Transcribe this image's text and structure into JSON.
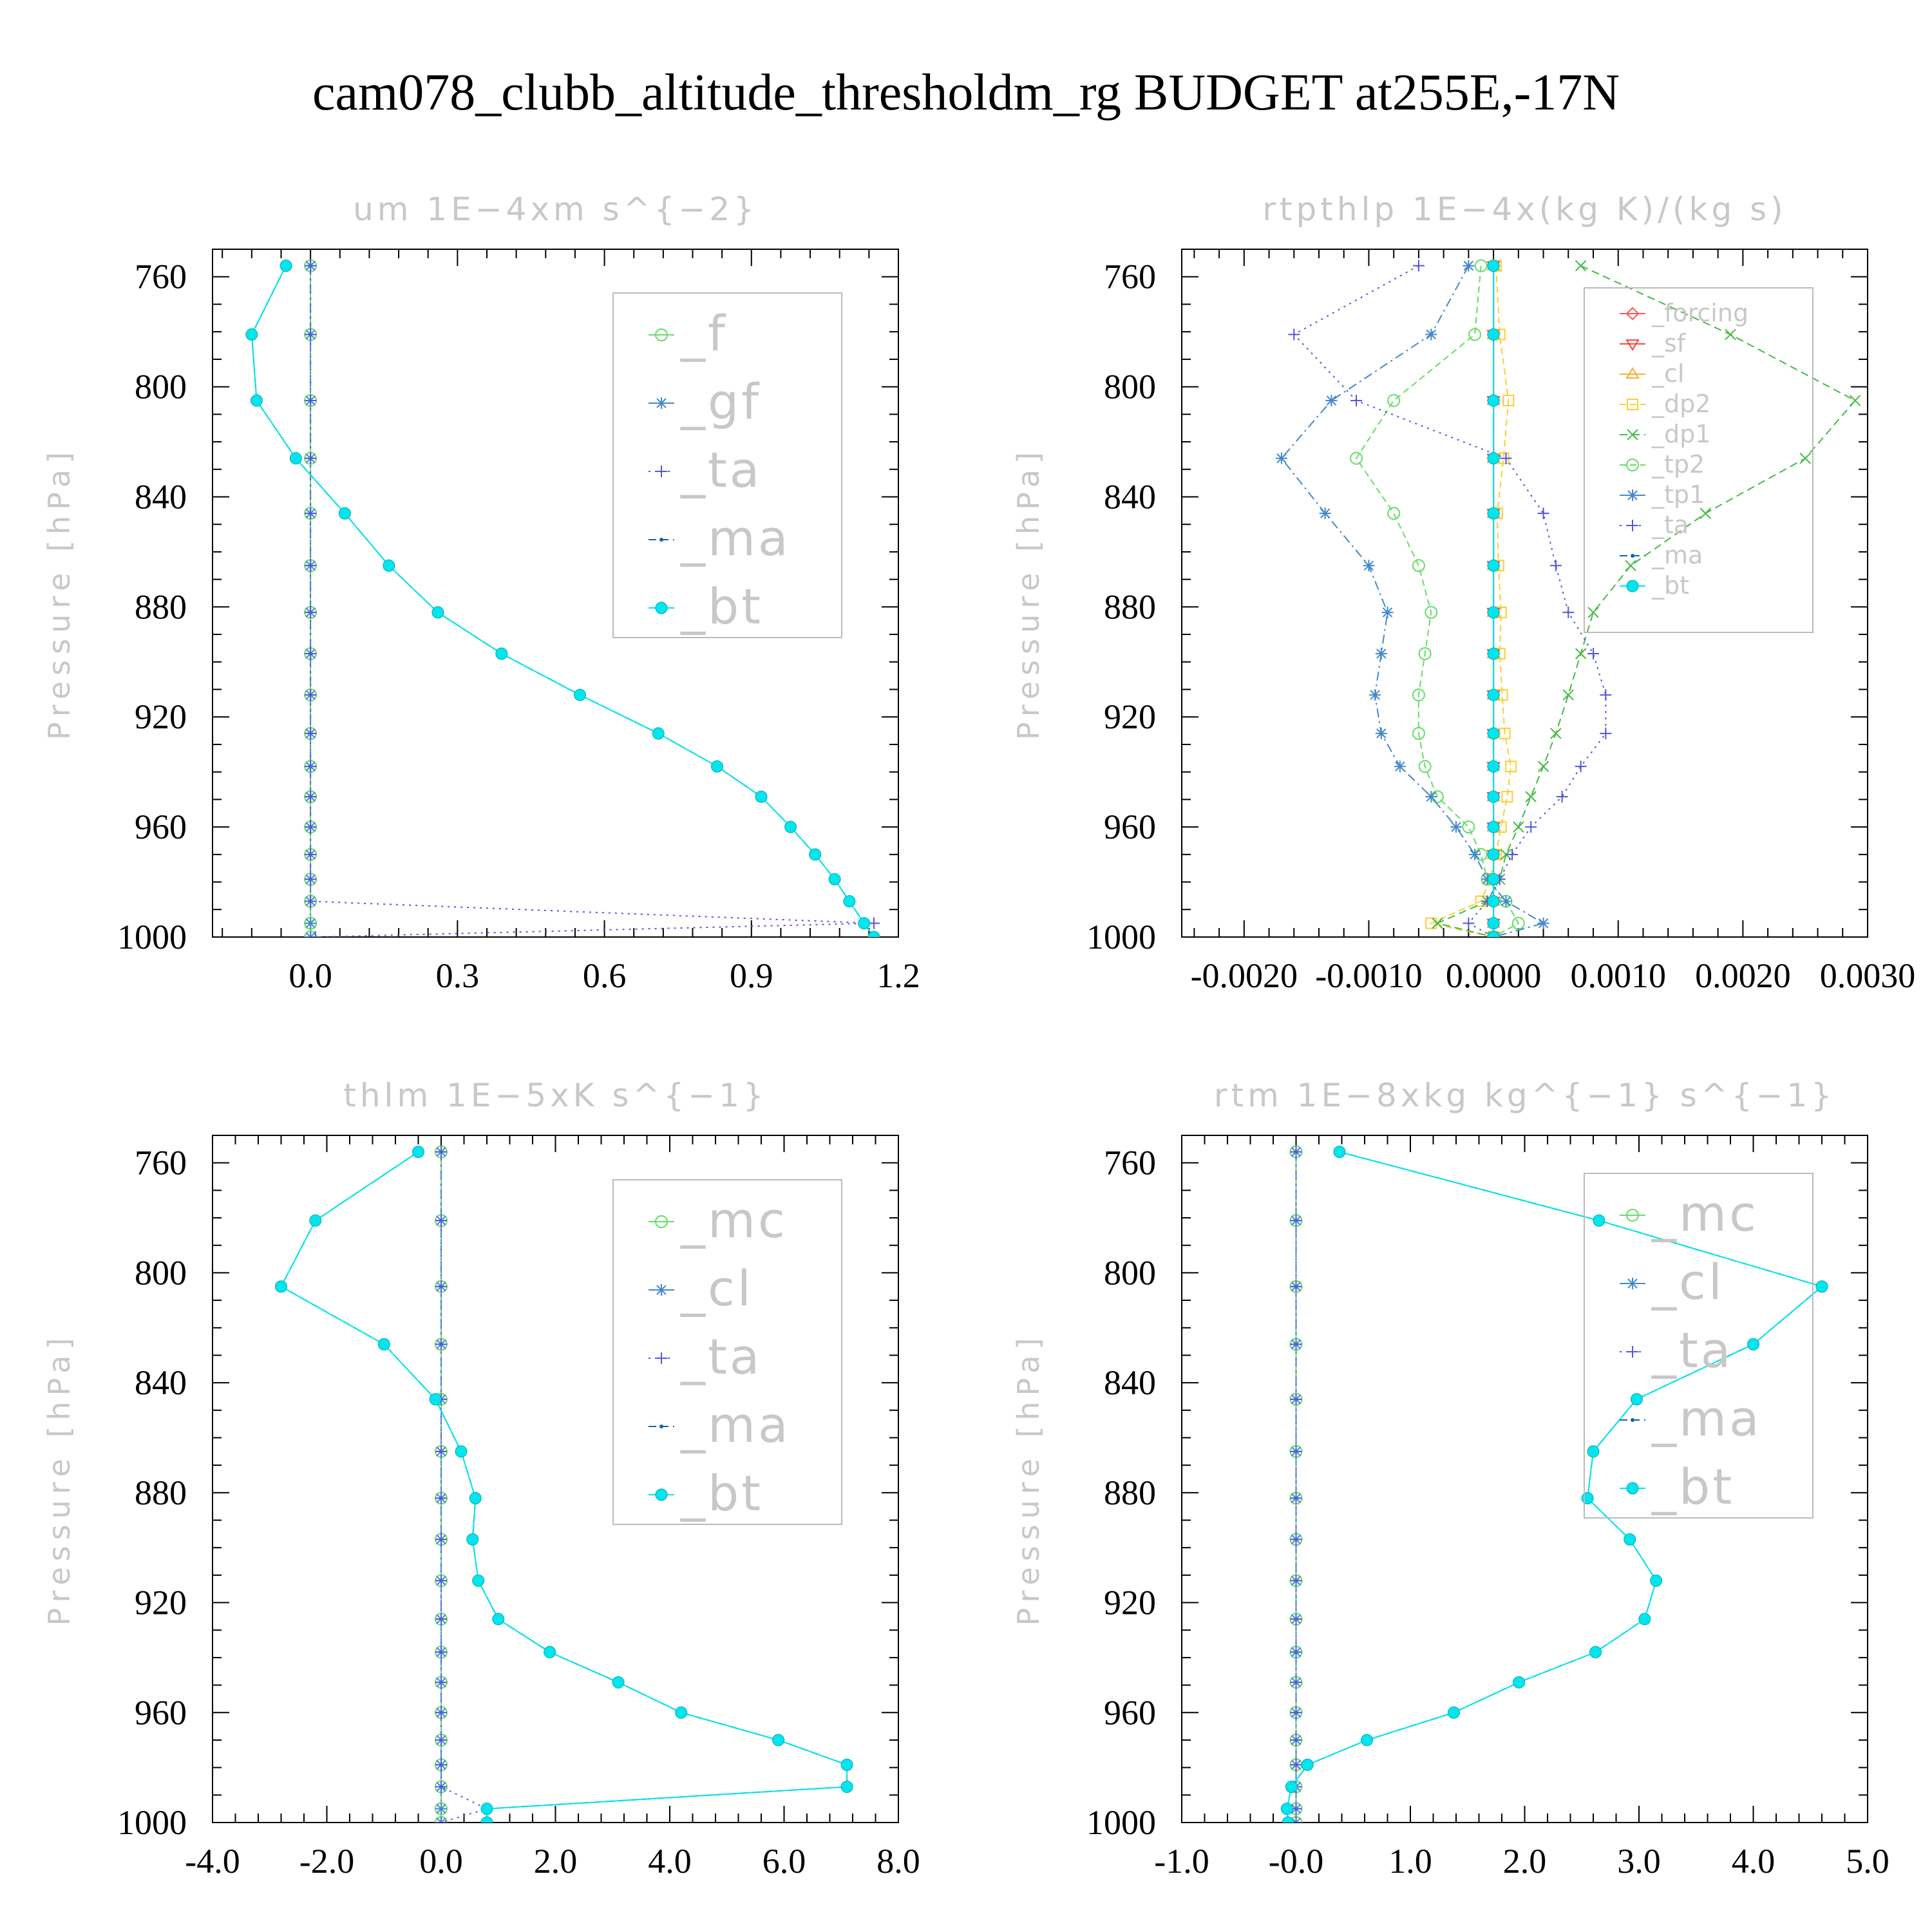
{
  "title": "cam078_clubb_altitude_thresholdm_rg  BUDGET at255E,-17N",
  "chart_data": [
    {
      "type": "line",
      "title": "um   1E−4xm s^{−2}",
      "ylabel": "Pressure [hPa]",
      "xlabel": "",
      "xlim": [
        -0.2,
        1.2
      ],
      "ylim": [
        1000,
        750
      ],
      "xticks": [
        "0.0",
        "0.3",
        "0.6",
        "0.9",
        "1.2"
      ],
      "xtick_values": [
        0.0,
        0.3,
        0.6,
        0.9,
        1.2
      ],
      "yticks": [
        "760",
        "800",
        "840",
        "880",
        "920",
        "960",
        "1000"
      ],
      "legend_position": "top-right",
      "pressure": [
        756,
        781,
        805,
        826,
        846,
        865,
        882,
        897,
        912,
        926,
        938,
        949,
        960,
        970,
        979,
        987,
        995,
        1000
      ],
      "series": [
        {
          "name": "_f",
          "color": "#66dd66",
          "marker": "circle",
          "dash": "",
          "values": [
            0,
            0,
            0,
            0,
            0,
            0,
            0,
            0,
            0,
            0,
            0,
            0,
            0,
            0,
            0,
            0,
            0,
            0
          ]
        },
        {
          "name": "_gf",
          "color": "#4488cc",
          "marker": "star",
          "dash": "14,6,3,6",
          "values": [
            0,
            0,
            0,
            0,
            0,
            0,
            0,
            0,
            0,
            0,
            0,
            0,
            0,
            0,
            0,
            0,
            0,
            0
          ]
        },
        {
          "name": "_ta",
          "color": "#5555dd",
          "marker": "plus",
          "dash": "3,7",
          "values": [
            0,
            0,
            0,
            0,
            0,
            0,
            0,
            0,
            0,
            0,
            0,
            0,
            0,
            0,
            0,
            0,
            1.15,
            0.01
          ]
        },
        {
          "name": "_ma",
          "color": "#1166aa",
          "marker": "dot",
          "dash": "12,7",
          "values": [
            -0.05,
            -0.12,
            -0.11,
            -0.03,
            0.07,
            0.16,
            0.26,
            0.39,
            0.55,
            0.71,
            0.83,
            0.92,
            0.98,
            1.03,
            1.07,
            1.1,
            1.13,
            1.15
          ]
        },
        {
          "name": "_bt",
          "color": "#00e5ee",
          "marker": "bigdot",
          "dash": "",
          "values": [
            -0.05,
            -0.12,
            -0.11,
            -0.03,
            0.07,
            0.16,
            0.26,
            0.39,
            0.55,
            0.71,
            0.83,
            0.92,
            0.98,
            1.03,
            1.07,
            1.1,
            1.13,
            1.15
          ]
        }
      ]
    },
    {
      "type": "line",
      "title": "rtpthlp   1E−4x(kg K)/(kg s)",
      "ylabel": "Pressure [hPa]",
      "xlabel": "",
      "xlim": [
        -0.0025,
        0.003
      ],
      "ylim": [
        1000,
        750
      ],
      "xticks": [
        "-0.0020",
        "-0.0010",
        "0.0000",
        "0.0010",
        "0.0020",
        "0.0030"
      ],
      "xtick_values": [
        -0.002,
        -0.001,
        0.0,
        0.001,
        0.002,
        0.003
      ],
      "yticks": [
        "760",
        "800",
        "840",
        "880",
        "920",
        "960",
        "1000"
      ],
      "legend_position": "top-right",
      "pressure": [
        756,
        781,
        805,
        826,
        846,
        865,
        882,
        897,
        912,
        926,
        938,
        949,
        960,
        970,
        979,
        987,
        995,
        1000
      ],
      "series": [
        {
          "name": "_forcing",
          "color": "#ff5555",
          "marker": "diamond",
          "dash": "",
          "values": [
            0,
            0,
            0,
            0,
            0,
            0,
            0,
            0,
            0,
            0,
            0,
            0,
            0,
            0,
            0,
            0,
            0,
            0
          ]
        },
        {
          "name": "_sf",
          "color": "#ff4444",
          "marker": "tri-down",
          "dash": "",
          "values": [
            0,
            0,
            0,
            0,
            0,
            0,
            0,
            0,
            0,
            0,
            0,
            0,
            0,
            0,
            0,
            0,
            0,
            0
          ]
        },
        {
          "name": "_cl",
          "color": "#ffaa33",
          "marker": "tri-up",
          "dash": "",
          "values": [
            0,
            0,
            0,
            0,
            0,
            0,
            0,
            0,
            0,
            0,
            0,
            0,
            0,
            0,
            0,
            0,
            0,
            0
          ]
        },
        {
          "name": "_dp2",
          "color": "#ffcc33",
          "marker": "square",
          "dash": "10,6",
          "values": [
            2e-05,
            5e-05,
            0.00012,
            8e-05,
            3e-05,
            4e-05,
            6e-05,
            5e-05,
            7e-05,
            9e-05,
            0.00014,
            0.00011,
            6e-05,
            2e-05,
            -3e-05,
            -0.0001,
            -0.0005,
            0.0
          ]
        },
        {
          "name": "_dp1",
          "color": "#44bb44",
          "marker": "x",
          "dash": "12,7",
          "values": [
            0.0007,
            0.0019,
            0.0029,
            0.0025,
            0.0017,
            0.0011,
            0.0008,
            0.0007,
            0.0006,
            0.0005,
            0.0004,
            0.0003,
            0.0002,
            0.0001,
            5e-05,
            -5e-05,
            -0.00045,
            0.0
          ]
        },
        {
          "name": "_tp2",
          "color": "#66dd66",
          "marker": "circle",
          "dash": "10,6",
          "values": [
            -0.0001,
            -0.00015,
            -0.0008,
            -0.0011,
            -0.0008,
            -0.0006,
            -0.0005,
            -0.00055,
            -0.0006,
            -0.0006,
            -0.00055,
            -0.00045,
            -0.0002,
            -0.0001,
            -5e-05,
            0.0001,
            0.0002,
            0.0
          ]
        },
        {
          "name": "_tp1",
          "color": "#4488cc",
          "marker": "star",
          "dash": "14,6,3,6",
          "values": [
            -0.0002,
            -0.0005,
            -0.0013,
            -0.0017,
            -0.00135,
            -0.001,
            -0.00085,
            -0.0009,
            -0.00095,
            -0.0009,
            -0.00075,
            -0.0005,
            -0.0003,
            -0.00015,
            -5e-05,
            0.0001,
            0.0004,
            0.0
          ]
        },
        {
          "name": "_ta",
          "color": "#5555dd",
          "marker": "plus",
          "dash": "3,7",
          "values": [
            -0.0006,
            -0.0016,
            -0.0011,
            0.0001,
            0.0004,
            0.0005,
            0.0006,
            0.0008,
            0.0009,
            0.0009,
            0.0007,
            0.00055,
            0.0003,
            0.00015,
            5e-05,
            -5e-05,
            -0.0002,
            0.0
          ]
        },
        {
          "name": "_ma",
          "color": "#1166aa",
          "marker": "dot",
          "dash": "12,7",
          "values": [
            0,
            0,
            0,
            0,
            0,
            0,
            0,
            0,
            0,
            0,
            0,
            0,
            0,
            0,
            0,
            0,
            0,
            0
          ]
        },
        {
          "name": "_bt",
          "color": "#00e5ee",
          "marker": "bigdot",
          "dash": "",
          "values": [
            0,
            0,
            0,
            0,
            0,
            0,
            0,
            0,
            0,
            0,
            0,
            0,
            0,
            0,
            0,
            0,
            0,
            0
          ]
        }
      ]
    },
    {
      "type": "line",
      "title": "thlm   1E−5xK s^{−1}",
      "ylabel": "Pressure [hPa]",
      "xlabel": "",
      "xlim": [
        -4.0,
        8.0
      ],
      "ylim": [
        1000,
        750
      ],
      "xticks": [
        "-4.0",
        "-2.0",
        "0.0",
        "2.0",
        "4.0",
        "6.0",
        "8.0"
      ],
      "xtick_values": [
        -4.0,
        -2.0,
        0.0,
        2.0,
        4.0,
        6.0,
        8.0
      ],
      "yticks": [
        "760",
        "800",
        "840",
        "880",
        "920",
        "960",
        "1000"
      ],
      "legend_position": "top-right",
      "pressure": [
        756,
        781,
        805,
        826,
        846,
        865,
        882,
        897,
        912,
        926,
        938,
        949,
        960,
        970,
        979,
        987,
        995,
        1000
      ],
      "series": [
        {
          "name": "_mc",
          "color": "#66dd66",
          "marker": "circle",
          "dash": "",
          "values": [
            0,
            0,
            0,
            0,
            0,
            0,
            0,
            0,
            0,
            0,
            0,
            0,
            0,
            0,
            0,
            0,
            0,
            0
          ]
        },
        {
          "name": "_cl",
          "color": "#4488cc",
          "marker": "star",
          "dash": "14,6,3,6",
          "values": [
            0,
            0,
            0,
            0,
            0,
            0,
            0,
            0,
            0,
            0,
            0,
            0,
            0,
            0,
            0,
            0,
            0,
            0
          ]
        },
        {
          "name": "_ta",
          "color": "#5555dd",
          "marker": "plus",
          "dash": "3,7",
          "values": [
            0,
            0,
            0,
            0,
            0,
            0,
            0,
            0,
            0,
            0,
            0,
            0,
            0,
            0,
            0,
            0,
            0.8,
            0.0
          ]
        },
        {
          "name": "_ma",
          "color": "#1166aa",
          "marker": "dot",
          "dash": "12,7",
          "values": [
            -0.4,
            -2.2,
            -2.8,
            -1.0,
            -0.1,
            0.35,
            0.6,
            0.55,
            0.65,
            1.0,
            1.9,
            3.1,
            4.2,
            5.9,
            7.1,
            7.1,
            0.8,
            0.8
          ]
        },
        {
          "name": "_bt",
          "color": "#00e5ee",
          "marker": "bigdot",
          "dash": "",
          "values": [
            -0.4,
            -2.2,
            -2.8,
            -1.0,
            -0.1,
            0.35,
            0.6,
            0.55,
            0.65,
            1.0,
            1.9,
            3.1,
            4.2,
            5.9,
            7.1,
            7.1,
            0.8,
            0.8
          ]
        }
      ]
    },
    {
      "type": "line",
      "title": "rtm   1E−8xkg kg^{−1} s^{−1}",
      "ylabel": "Pressure [hPa]",
      "xlabel": "",
      "xlim": [
        -1.0,
        5.0
      ],
      "ylim": [
        1000,
        750
      ],
      "xticks": [
        "-1.0",
        "-0.0",
        "1.0",
        "2.0",
        "3.0",
        "4.0",
        "5.0"
      ],
      "xtick_values": [
        -1.0,
        0.0,
        1.0,
        2.0,
        3.0,
        4.0,
        5.0
      ],
      "yticks": [
        "760",
        "800",
        "840",
        "880",
        "920",
        "960",
        "1000"
      ],
      "legend_position": "top-right",
      "pressure": [
        756,
        781,
        805,
        826,
        846,
        865,
        882,
        897,
        912,
        926,
        938,
        949,
        960,
        970,
        979,
        987,
        995,
        1000
      ],
      "series": [
        {
          "name": "_mc",
          "color": "#66dd66",
          "marker": "circle",
          "dash": "",
          "values": [
            0,
            0,
            0,
            0,
            0,
            0,
            0,
            0,
            0,
            0,
            0,
            0,
            0,
            0,
            0,
            0,
            0,
            0
          ]
        },
        {
          "name": "_cl",
          "color": "#4488cc",
          "marker": "star",
          "dash": "14,6,3,6",
          "values": [
            0,
            0,
            0,
            0,
            0,
            0,
            0,
            0,
            0,
            0,
            0,
            0,
            0,
            0,
            0,
            0,
            0,
            0
          ]
        },
        {
          "name": "_ta",
          "color": "#5555dd",
          "marker": "plus",
          "dash": "3,7",
          "values": [
            0,
            0,
            0,
            0,
            0,
            0,
            0,
            0,
            0,
            0,
            0,
            0,
            0,
            0,
            0,
            0,
            0,
            0
          ]
        },
        {
          "name": "_ma",
          "color": "#1166aa",
          "marker": "dot",
          "dash": "12,7",
          "values": [
            0.38,
            2.65,
            4.6,
            4.0,
            2.98,
            2.6,
            2.55,
            2.92,
            3.15,
            3.05,
            2.62,
            1.95,
            1.38,
            0.62,
            0.1,
            -0.04,
            -0.08,
            -0.07
          ]
        },
        {
          "name": "_bt",
          "color": "#00e5ee",
          "marker": "bigdot",
          "dash": "",
          "values": [
            0.38,
            2.65,
            4.6,
            4.0,
            2.98,
            2.6,
            2.55,
            2.92,
            3.15,
            3.05,
            2.62,
            1.95,
            1.38,
            0.62,
            0.1,
            -0.04,
            -0.08,
            -0.07
          ]
        }
      ]
    }
  ]
}
